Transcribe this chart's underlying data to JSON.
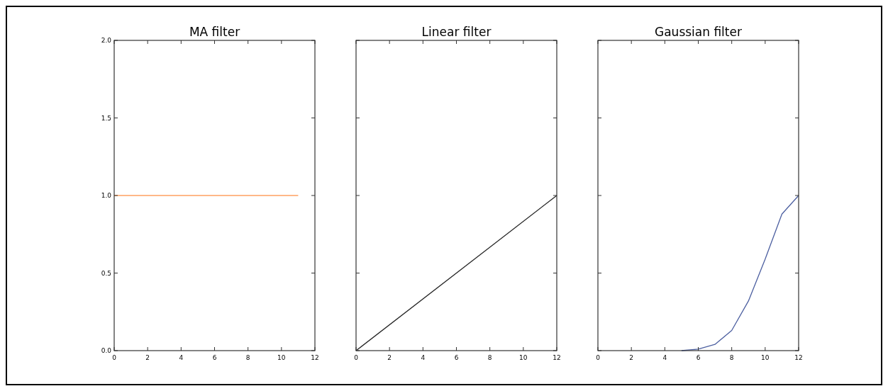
{
  "chart_data": [
    {
      "type": "line",
      "title": "MA filter",
      "xlim": [
        0,
        12
      ],
      "xticks": [
        0,
        2,
        4,
        6,
        8,
        10,
        12
      ],
      "ylim": [
        0,
        2
      ],
      "yticks": [
        {
          "value": 0,
          "label": "0.0"
        },
        {
          "value": 0.5,
          "label": "0.5"
        },
        {
          "value": 1,
          "label": "1.0"
        },
        {
          "value": 1.5,
          "label": "1.5"
        },
        {
          "value": 2,
          "label": "2.0"
        }
      ],
      "series": [
        {
          "color": "#ffa060",
          "x": [
            0,
            1,
            2,
            3,
            4,
            5,
            6,
            7,
            8,
            9,
            10,
            11
          ],
          "values": [
            1,
            1,
            1,
            1,
            1,
            1,
            1,
            1,
            1,
            1,
            1,
            1
          ]
        }
      ]
    },
    {
      "type": "line",
      "title": "Linear filter",
      "xlim": [
        0,
        12
      ],
      "xticks": [
        0,
        2,
        4,
        6,
        8,
        10,
        12
      ],
      "ylim": [
        0,
        2
      ],
      "yticks": [
        {
          "value": 0,
          "label": null
        },
        {
          "value": 0.5,
          "label": null
        },
        {
          "value": 1,
          "label": null
        },
        {
          "value": 1.5,
          "label": null
        },
        {
          "value": 2,
          "label": null
        }
      ],
      "tick_labels": "x",
      "series": [
        {
          "color": "#222222",
          "x": [
            0,
            12
          ],
          "values": [
            0,
            1
          ]
        }
      ]
    },
    {
      "type": "line",
      "title": "Gaussian filter",
      "xlim": [
        0,
        12
      ],
      "xticks": [
        0,
        2,
        4,
        6,
        8,
        10,
        12
      ],
      "ylim": [
        0,
        2
      ],
      "yticks": [
        {
          "value": 0,
          "label": null
        },
        {
          "value": 0.5,
          "label": null
        },
        {
          "value": 1,
          "label": null
        },
        {
          "value": 1.5,
          "label": null
        },
        {
          "value": 2,
          "label": null
        }
      ],
      "tick_labels": "x",
      "series": [
        {
          "color": "#4c5fa0",
          "x": [
            5,
            6,
            7,
            8,
            9,
            10,
            11,
            12
          ],
          "values": [
            0,
            0.01,
            0.04,
            0.13,
            0.32,
            0.59,
            0.88,
            1
          ]
        }
      ]
    }
  ]
}
